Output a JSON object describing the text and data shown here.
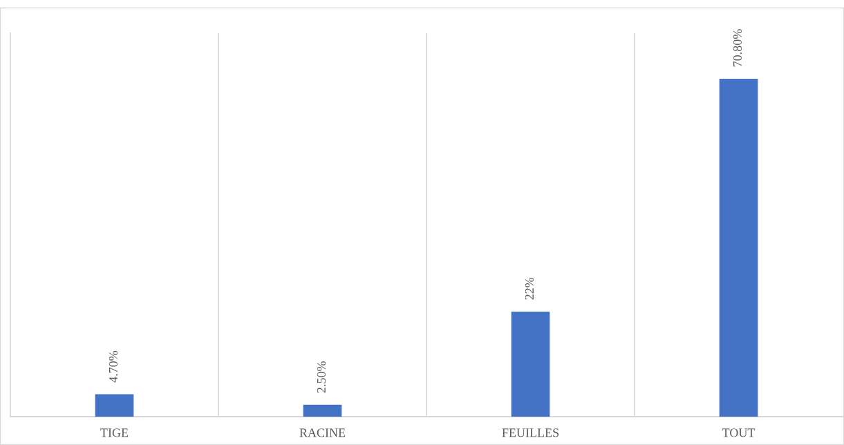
{
  "chart_data": {
    "type": "bar",
    "categories": [
      "TIGE",
      "RACINE",
      "FEUILLES",
      "TOUT"
    ],
    "values": [
      4.7,
      2.5,
      22,
      70.8
    ],
    "value_labels": [
      "4.70%",
      "2.50%",
      "22%",
      "70.80%"
    ],
    "color": "#4472c4",
    "grid": "x",
    "legend": false
  }
}
